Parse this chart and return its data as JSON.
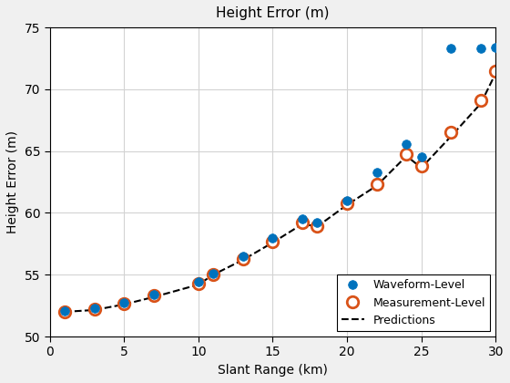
{
  "title": "Height Error (m)",
  "xlabel": "Slant Range (km)",
  "ylabel": "Height Error (m)",
  "xlim": [
    0,
    30
  ],
  "ylim": [
    50,
    75
  ],
  "yticks": [
    50,
    55,
    60,
    65,
    70,
    75
  ],
  "xticks": [
    0,
    5,
    10,
    15,
    20,
    25,
    30
  ],
  "waveform_x": [
    1,
    3,
    5,
    7,
    10,
    11,
    13,
    15,
    17,
    18,
    20,
    22,
    24,
    25,
    27,
    29,
    30
  ],
  "waveform_y": [
    52.1,
    52.3,
    52.75,
    53.4,
    54.4,
    55.1,
    56.5,
    58.0,
    59.5,
    59.2,
    61.0,
    63.3,
    65.6,
    64.5,
    73.3,
    73.3,
    73.4
  ],
  "measurement_x": [
    1,
    3,
    5,
    7,
    10,
    11,
    13,
    15,
    17,
    18,
    20,
    22,
    24,
    25,
    27,
    29,
    30
  ],
  "measurement_y": [
    52.0,
    52.2,
    52.65,
    53.3,
    54.3,
    55.05,
    56.3,
    57.65,
    59.2,
    58.95,
    60.8,
    62.3,
    64.75,
    63.8,
    66.5,
    69.1,
    71.5
  ],
  "pred_x": [
    1,
    3,
    5,
    7,
    10,
    11,
    13,
    15,
    17,
    18,
    20,
    22,
    24,
    25,
    27,
    29,
    30
  ],
  "pred_y": [
    52.0,
    52.15,
    52.6,
    53.2,
    54.2,
    55.0,
    56.2,
    57.6,
    59.1,
    58.9,
    60.65,
    62.2,
    64.6,
    63.65,
    66.2,
    68.85,
    71.3
  ],
  "waveform_color": "#0072BD",
  "measurement_color": "#D95319",
  "pred_color": "#000000",
  "fig_facecolor": "#F0F0F0",
  "axes_facecolor": "#FFFFFF",
  "grid_color": "#D3D3D3",
  "legend_loc": "lower right",
  "figsize": [
    5.6,
    4.2
  ],
  "dpi": 100
}
